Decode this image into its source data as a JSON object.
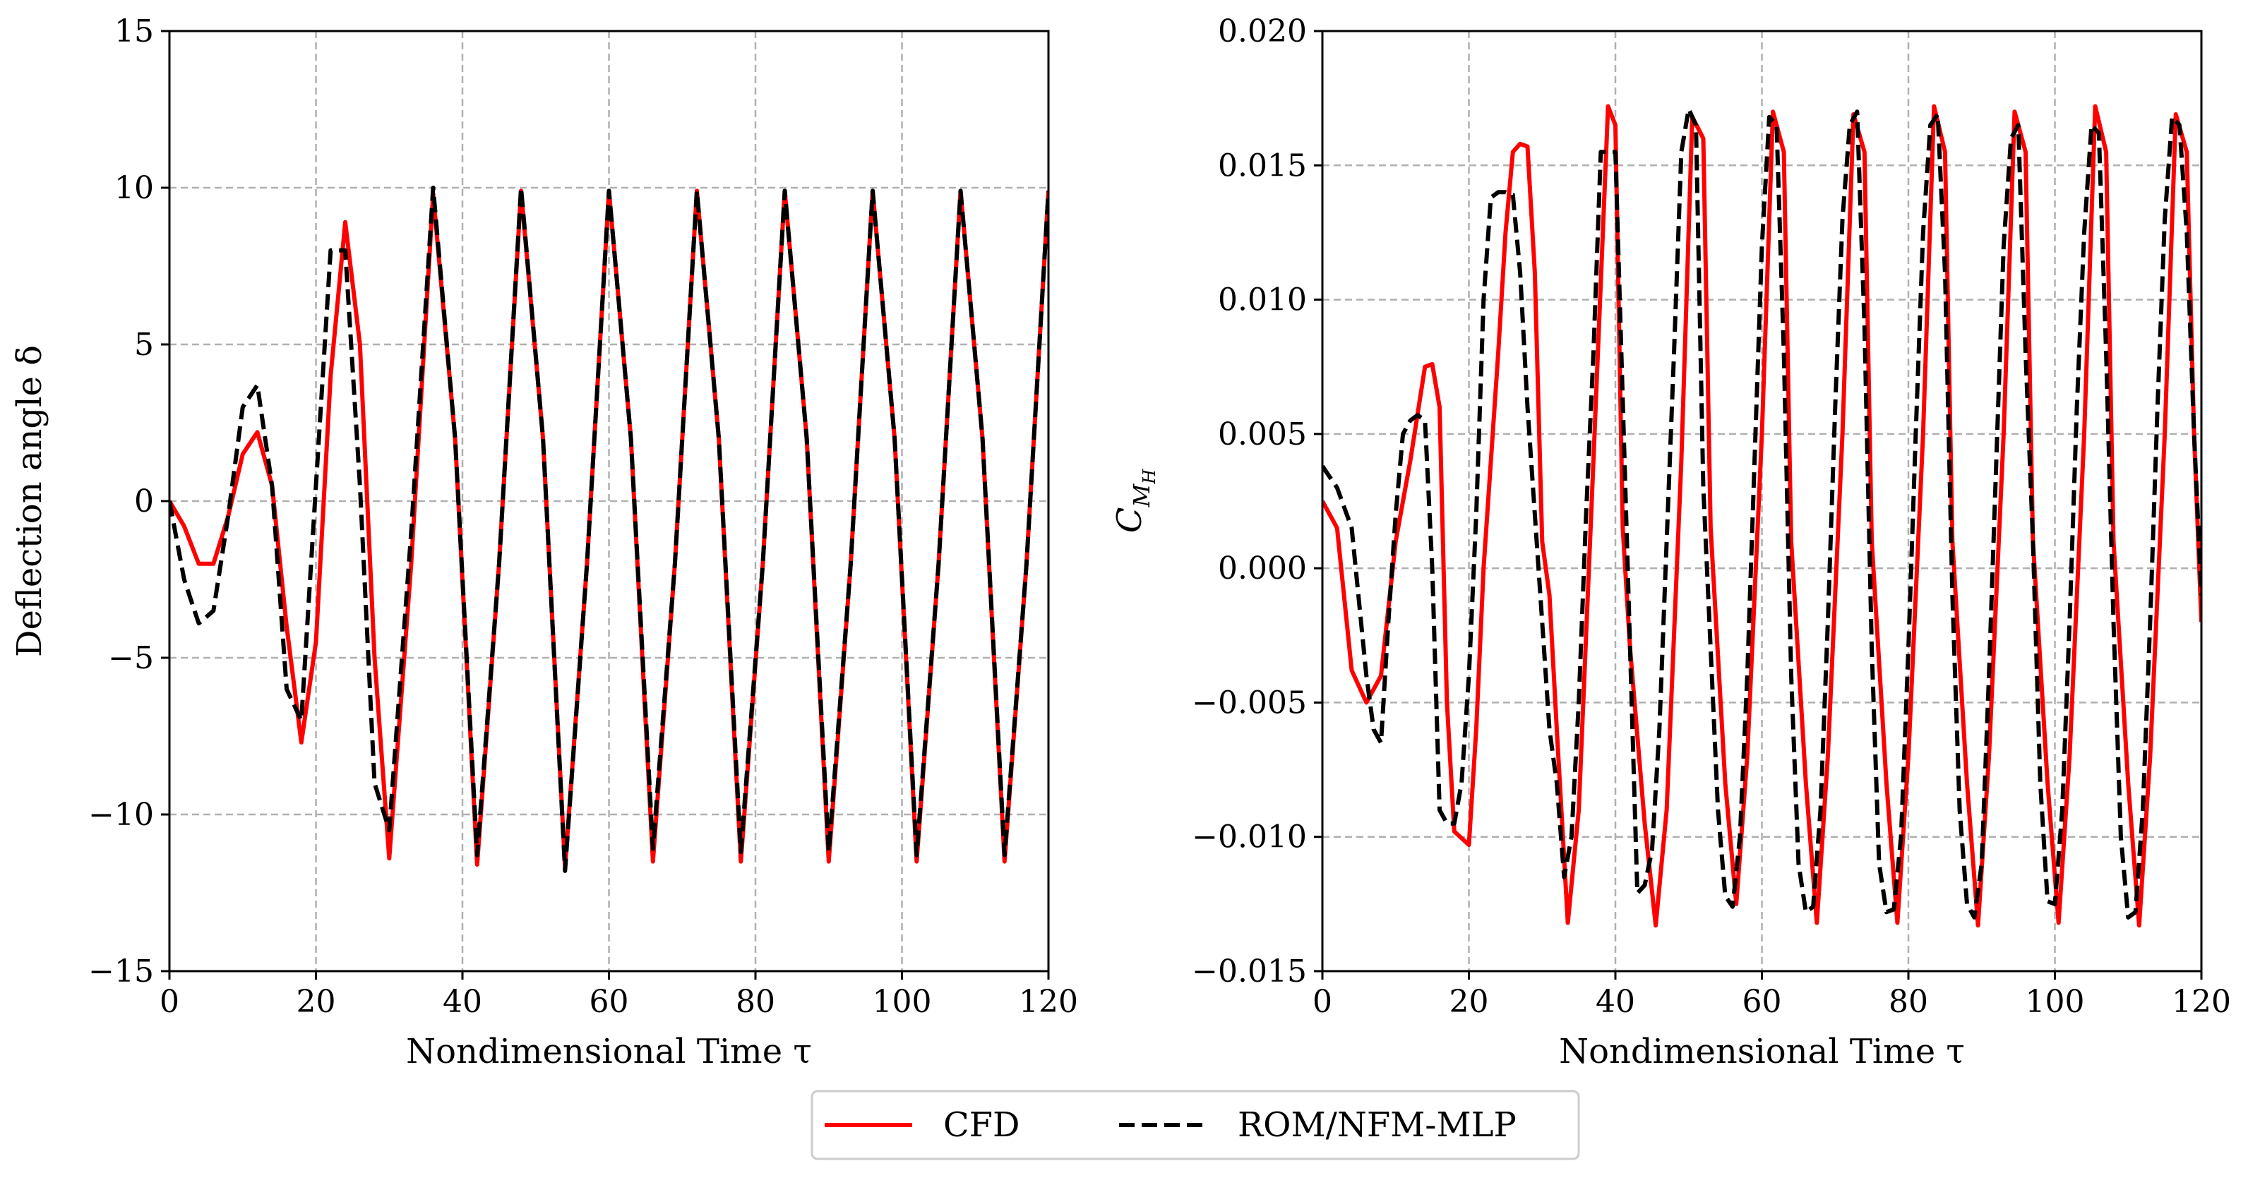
{
  "legend": {
    "position": "bottom-center",
    "entries": [
      {
        "name": "CFD",
        "color": "#ff0000",
        "dash": "solid"
      },
      {
        "name": "ROM/NFM-MLP",
        "color": "#000000",
        "dash": "dashed"
      }
    ]
  },
  "chart_data": [
    {
      "type": "line",
      "xlabel": "Nondimensional Time τ",
      "ylabel": "Deflection angle δ",
      "xlim": [
        0,
        120
      ],
      "ylim": [
        -15,
        15
      ],
      "xticks": [
        0,
        20,
        40,
        60,
        80,
        100,
        120
      ],
      "xtick_labels": [
        "0",
        "20",
        "40",
        "60",
        "80",
        "100",
        "120"
      ],
      "yticks": [
        -15,
        -10,
        -5,
        0,
        5,
        10,
        15
      ],
      "ytick_labels": [
        "−15",
        "−10",
        "−5",
        "0",
        "5",
        "10",
        "15"
      ],
      "grid": true,
      "series": [
        {
          "name": "CFD",
          "x": [
            0,
            2,
            4,
            6,
            8,
            10,
            12,
            14,
            16,
            18,
            20,
            22,
            24,
            26,
            28,
            30,
            33,
            36,
            39,
            42,
            45,
            48,
            51,
            54,
            57,
            60,
            63,
            66,
            69,
            72,
            75,
            78,
            81,
            84,
            87,
            90,
            93,
            96,
            99,
            102,
            105,
            108,
            111,
            114,
            117,
            120
          ],
          "y": [
            0,
            -0.8,
            -2.0,
            -2.0,
            -0.5,
            1.5,
            2.2,
            0.5,
            -4.0,
            -7.7,
            -4.5,
            4.0,
            8.9,
            5.0,
            -5.0,
            -11.4,
            -2.0,
            9.8,
            2.0,
            -11.6,
            -2.0,
            9.9,
            2.0,
            -11.7,
            -2.0,
            9.9,
            2.0,
            -11.5,
            -2.0,
            9.9,
            2.0,
            -11.5,
            -2.0,
            9.9,
            2.0,
            -11.5,
            -2.0,
            9.9,
            2.0,
            -11.5,
            -2.0,
            9.9,
            2.0,
            -11.5,
            -2.0,
            9.9
          ]
        },
        {
          "name": "ROM/NFM-MLP",
          "x": [
            0,
            2,
            4,
            6,
            8,
            10,
            12,
            14,
            16,
            18,
            20,
            22,
            24,
            26,
            28,
            30,
            33,
            36,
            39,
            42,
            45,
            48,
            51,
            54,
            57,
            60,
            63,
            66,
            69,
            72,
            75,
            78,
            81,
            84,
            87,
            90,
            93,
            96,
            99,
            102,
            105,
            108,
            111,
            114,
            117,
            120
          ],
          "y": [
            0,
            -2.5,
            -3.9,
            -3.5,
            -0.5,
            3.0,
            3.7,
            0.5,
            -6.0,
            -7.0,
            0.5,
            8.0,
            8.0,
            0.5,
            -9.0,
            -10.5,
            -1.0,
            10.0,
            2.0,
            -11.3,
            -2.0,
            10.0,
            2.0,
            -11.8,
            -2.0,
            9.9,
            2.0,
            -11.1,
            -2.0,
            9.9,
            2.0,
            -11.2,
            -2.0,
            9.9,
            2.0,
            -11.2,
            -2.0,
            9.9,
            2.0,
            -11.3,
            -2.0,
            9.9,
            2.0,
            -11.3,
            -2.0,
            9.9
          ]
        }
      ]
    },
    {
      "type": "line",
      "xlabel": "Nondimensional Time τ",
      "ylabel": "C_{M_H}",
      "ylabel_main": "C",
      "ylabel_sub1": "M",
      "ylabel_sub2": "H",
      "xlim": [
        0,
        120
      ],
      "ylim": [
        -0.015,
        0.02
      ],
      "xticks": [
        0,
        20,
        40,
        60,
        80,
        100,
        120
      ],
      "xtick_labels": [
        "0",
        "20",
        "40",
        "60",
        "80",
        "100",
        "120"
      ],
      "yticks": [
        -0.015,
        -0.01,
        -0.005,
        0.0,
        0.005,
        0.01,
        0.015,
        0.02
      ],
      "ytick_labels": [
        "−0.015",
        "−0.010",
        "−0.005",
        "0.000",
        "0.005",
        "0.010",
        "0.015",
        "0.020"
      ],
      "grid": true,
      "series": [
        {
          "name": "CFD",
          "x": [
            0,
            2,
            4,
            6,
            8,
            10,
            12,
            14,
            15,
            16,
            17,
            18,
            20,
            21,
            22,
            24,
            25,
            26,
            27,
            28,
            29,
            30,
            31,
            32,
            33.5,
            35,
            37,
            39,
            40,
            41,
            42,
            44,
            45.5,
            47,
            49,
            50.5,
            52,
            53,
            55,
            56.5,
            58,
            60,
            61.5,
            63,
            64,
            66,
            67.5,
            69,
            71,
            72.5,
            74,
            75,
            77,
            78.5,
            80,
            82,
            83.5,
            85,
            86,
            88,
            89.5,
            91,
            93,
            94.5,
            96,
            97,
            99,
            100.5,
            102,
            104,
            105.5,
            107,
            108,
            110,
            111.5,
            113,
            115,
            116.5,
            118,
            119,
            120
          ],
          "y": [
            0.0025,
            0.0015,
            -0.0038,
            -0.005,
            -0.004,
            0.001,
            0.004,
            0.0075,
            0.0076,
            0.006,
            -0.005,
            -0.0098,
            -0.0103,
            -0.006,
            0.0,
            0.008,
            0.0125,
            0.0155,
            0.0158,
            0.0157,
            0.011,
            0.001,
            -0.001,
            -0.006,
            -0.0132,
            -0.009,
            0.004,
            0.0172,
            0.0165,
            0.0015,
            -0.003,
            -0.0095,
            -0.0133,
            -0.009,
            0.004,
            0.0168,
            0.016,
            0.0015,
            -0.008,
            -0.0125,
            -0.007,
            0.005,
            0.017,
            0.0155,
            0.001,
            -0.008,
            -0.0132,
            -0.007,
            0.005,
            0.0169,
            0.0155,
            0.001,
            -0.008,
            -0.0132,
            -0.007,
            0.005,
            0.0172,
            0.0155,
            0.001,
            -0.008,
            -0.0133,
            -0.007,
            0.005,
            0.017,
            0.0155,
            0.001,
            -0.008,
            -0.0132,
            -0.007,
            0.005,
            0.0172,
            0.0155,
            0.001,
            -0.008,
            -0.0133,
            -0.007,
            0.005,
            0.0169,
            0.0155,
            0.005,
            -0.002
          ]
        },
        {
          "name": "ROM/NFM-MLP",
          "x": [
            0,
            2,
            4,
            6,
            7,
            8,
            9,
            10,
            11,
            12,
            13,
            14,
            15,
            16,
            17,
            18,
            19,
            20,
            21,
            22,
            23,
            24,
            25,
            26,
            27,
            28,
            29,
            30,
            31,
            32,
            33,
            34,
            35,
            36,
            37,
            38,
            39,
            40,
            42,
            43,
            44,
            45,
            46,
            47,
            48,
            49,
            50,
            51,
            52,
            53,
            54,
            55,
            56,
            57,
            58,
            59,
            60,
            61,
            62,
            63,
            64,
            65,
            66,
            67,
            68,
            69,
            70,
            71,
            72,
            73,
            74,
            75,
            76,
            77,
            78,
            79,
            80,
            81,
            82,
            83,
            84,
            85,
            86,
            87,
            88,
            89,
            90,
            91,
            92,
            93,
            94,
            95,
            96,
            97,
            98,
            99,
            100,
            101,
            102,
            103,
            104,
            105,
            106,
            107,
            108,
            109,
            110,
            111,
            112,
            113,
            114,
            115,
            116,
            117,
            118,
            119,
            120
          ],
          "y": [
            0.0038,
            0.003,
            0.0015,
            -0.004,
            -0.006,
            -0.0065,
            -0.002,
            0.002,
            0.005,
            0.0055,
            0.0057,
            0.0055,
            0.0,
            -0.009,
            -0.0095,
            -0.0095,
            -0.008,
            -0.004,
            0.002,
            0.01,
            0.0138,
            0.014,
            0.014,
            0.0139,
            0.011,
            0.006,
            0.002,
            -0.002,
            -0.006,
            -0.008,
            -0.0115,
            -0.01,
            -0.005,
            0.002,
            0.008,
            0.0155,
            0.0155,
            0.0155,
            -0.003,
            -0.0121,
            -0.0118,
            -0.0105,
            -0.006,
            0.001,
            0.008,
            0.0155,
            0.0171,
            0.0165,
            0.003,
            -0.003,
            -0.009,
            -0.0122,
            -0.0126,
            -0.01,
            -0.004,
            0.004,
            0.012,
            0.0168,
            0.0165,
            0.008,
            -0.004,
            -0.011,
            -0.0128,
            -0.0126,
            -0.009,
            -0.002,
            0.006,
            0.013,
            0.0165,
            0.017,
            0.009,
            -0.003,
            -0.011,
            -0.0128,
            -0.0127,
            -0.01,
            -0.003,
            0.005,
            0.0125,
            0.0165,
            0.0169,
            0.011,
            -0.001,
            -0.009,
            -0.0125,
            -0.013,
            -0.011,
            -0.004,
            0.004,
            0.012,
            0.016,
            0.0165,
            0.008,
            0.001,
            -0.008,
            -0.0124,
            -0.0125,
            -0.009,
            -0.002,
            0.006,
            0.0125,
            0.0165,
            0.0162,
            0.008,
            -0.002,
            -0.01,
            -0.013,
            -0.0128,
            -0.009,
            -0.002,
            0.006,
            0.013,
            0.0168,
            0.0165,
            0.0125,
            0.005,
            -0.001
          ]
        }
      ]
    }
  ]
}
